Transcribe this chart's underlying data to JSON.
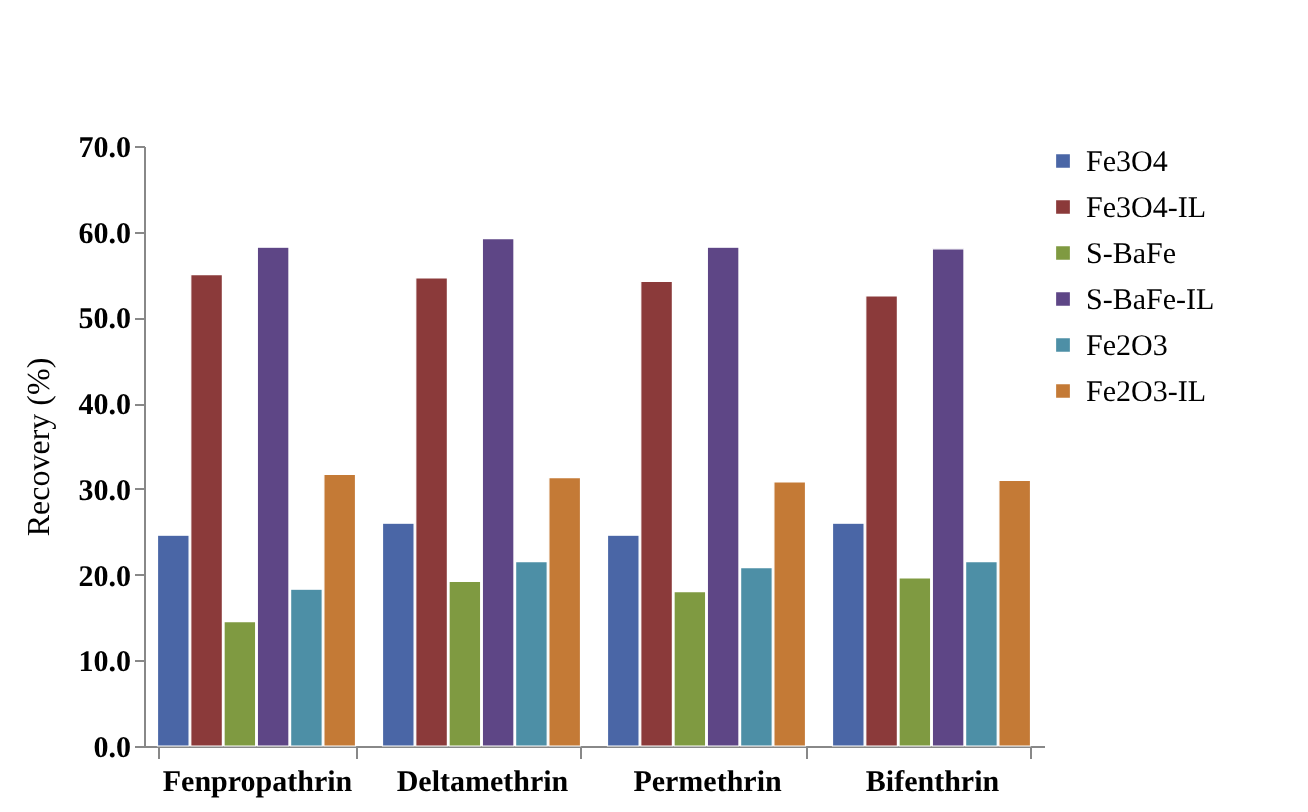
{
  "chart_data": {
    "type": "bar",
    "ylabel": "Recovery (%)",
    "categories": [
      "Fenpropathrin",
      "Deltamethrin",
      "Permethrin",
      "Bifenthrin"
    ],
    "series": [
      {
        "name": "Fe3O4",
        "color": "#4a66a6",
        "values": [
          24.6,
          26.0,
          24.6,
          26.0
        ]
      },
      {
        "name": "Fe3O4-IL",
        "color": "#8b3a3a",
        "values": [
          55.0,
          54.6,
          54.2,
          52.5
        ]
      },
      {
        "name": "S-BaFe",
        "color": "#7f9a41",
        "values": [
          14.5,
          19.2,
          18.0,
          19.6
        ]
      },
      {
        "name": "S-BaFe-IL",
        "color": "#5e4686",
        "values": [
          58.2,
          59.2,
          58.2,
          58.0
        ]
      },
      {
        "name": "Fe2O3",
        "color": "#4d8fa6",
        "values": [
          18.3,
          21.5,
          20.8,
          21.5
        ]
      },
      {
        "name": "Fe2O3-IL",
        "color": "#c47a36",
        "values": [
          31.7,
          31.3,
          30.8,
          31.0
        ]
      }
    ],
    "ylim": [
      0,
      70
    ],
    "yticks": [
      {
        "value": 0,
        "label": "0.0"
      },
      {
        "value": 10,
        "label": "10.0"
      },
      {
        "value": 20,
        "label": "20.0"
      },
      {
        "value": 30,
        "label": "30.0"
      },
      {
        "value": 40,
        "label": "40.0"
      },
      {
        "value": 50,
        "label": "50.0"
      },
      {
        "value": 60,
        "label": "60.0"
      },
      {
        "value": 70,
        "label": "70.0"
      }
    ],
    "grid": false,
    "legend": "right"
  }
}
